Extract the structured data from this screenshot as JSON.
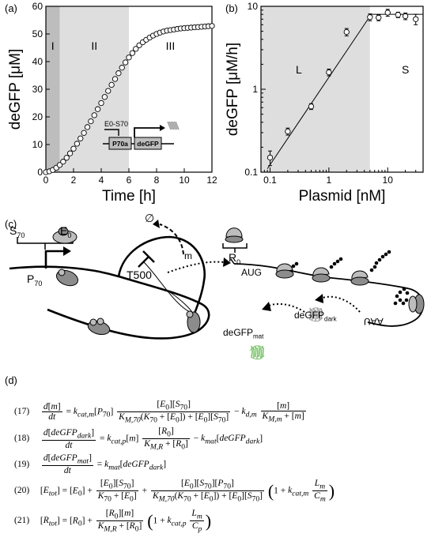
{
  "panel_labels": {
    "a": "(a)",
    "b": "(b)",
    "c": "(c)",
    "d": "(d)"
  },
  "chart_data": [
    {
      "type": "scatter",
      "panel": "a",
      "xlabel": "Time [h]",
      "ylabel": "deGFP [μM]",
      "xlim": [
        0,
        12
      ],
      "ylim": [
        0,
        60
      ],
      "x_ticks": [
        "0",
        "2",
        "4",
        "6",
        "8",
        "10",
        "12"
      ],
      "y_ticks": [
        "0",
        "10",
        "20",
        "30",
        "40",
        "50",
        "60"
      ],
      "regions": [
        {
          "label": "I",
          "from": 0,
          "to": 1,
          "color": "#bdbdbd"
        },
        {
          "label": "II",
          "from": 1,
          "to": 6,
          "color": "#dedede"
        },
        {
          "label": "III",
          "from": 6,
          "to": 12,
          "color": "#ffffff"
        }
      ],
      "series": [
        {
          "x": [
            0,
            0.25,
            0.5,
            0.75,
            1.0,
            1.25,
            1.5,
            1.75,
            2.0,
            2.25,
            2.5,
            2.75,
            3.0,
            3.25,
            3.5,
            3.75,
            4.0,
            4.25,
            4.5,
            4.75,
            5.0,
            5.25,
            5.5,
            5.75,
            6.0,
            6.25,
            6.5,
            6.75,
            7.0,
            7.25,
            7.5,
            7.75,
            8.0,
            8.25,
            8.5,
            8.75,
            9.0,
            9.25,
            9.5,
            9.75,
            10.0,
            10.25,
            10.5,
            10.75,
            11.0,
            11.25,
            11.5,
            11.75,
            12.0
          ],
          "y": [
            0,
            0.3,
            0.8,
            1.6,
            2.6,
            3.8,
            5.2,
            6.8,
            8.5,
            10.3,
            12.2,
            14.2,
            16.3,
            18.4,
            20.6,
            22.8,
            25.0,
            27.2,
            29.4,
            31.6,
            33.7,
            35.8,
            37.8,
            39.7,
            41.5,
            43.1,
            44.6,
            45.9,
            47.0,
            47.9,
            48.7,
            49.4,
            50.0,
            50.5,
            50.9,
            51.2,
            51.4,
            51.6,
            51.8,
            52.0,
            52.1,
            52.2,
            52.3,
            52.4,
            52.5,
            52.6,
            52.7,
            52.8,
            52.9
          ]
        }
      ],
      "inset": {
        "top_label": "E0-S70",
        "promoter": "P70a",
        "gene": "deGFP"
      }
    },
    {
      "type": "scatter",
      "panel": "b",
      "xlabel": "Plasmid [nM]",
      "ylabel": "deGFP [μM/h]",
      "xscale": "log",
      "yscale": "log",
      "xlim": [
        0.07,
        40
      ],
      "ylim": [
        0.1,
        10
      ],
      "x_ticks": [
        "0.1",
        "1",
        "10"
      ],
      "y_ticks": [
        "0.1",
        "1",
        "10"
      ],
      "regions": [
        {
          "label": "L",
          "from": 0.07,
          "to": 5,
          "color": "#dedede"
        },
        {
          "label": "S",
          "from": 5,
          "to": 40,
          "color": "#ffffff"
        }
      ],
      "series": [
        {
          "x": [
            0.1,
            0.2,
            0.5,
            1.0,
            2.0,
            5.0,
            7.0,
            10.0,
            15.0,
            20.0,
            30.0
          ],
          "y": [
            0.15,
            0.31,
            0.62,
            1.6,
            4.9,
            7.4,
            7.3,
            8.4,
            7.9,
            7.6,
            7.0
          ],
          "err": [
            0.03,
            0.03,
            0.05,
            0.15,
            0.5,
            0.7,
            0.6,
            0.8,
            0.6,
            0.7,
            1.0
          ]
        }
      ],
      "fit_line": {
        "x": [
          0.09,
          5.0
        ],
        "y": [
          0.11,
          7.6
        ]
      },
      "saturation_line": {
        "x": [
          5.0,
          40
        ],
        "y": 8.0
      }
    }
  ],
  "schematic": {
    "S70": "S70",
    "E0": "E0",
    "P70": "P70",
    "T500": "T500",
    "empty": "∅",
    "m": "m",
    "R0": "R0",
    "AUG": "AUG",
    "UAA": "UAA",
    "deGFP_dark": "deGFPdark",
    "deGFP_mat": "deGFPmat",
    "colors": {
      "green_protein": "#7cc36b",
      "gray_protein": "#a0a0a0",
      "ribosome": "#b8b8b8"
    }
  },
  "equations": {
    "n17": "(17)",
    "n18": "(18)",
    "n19": "(19)",
    "n20": "(20)",
    "n21": "(21)"
  }
}
